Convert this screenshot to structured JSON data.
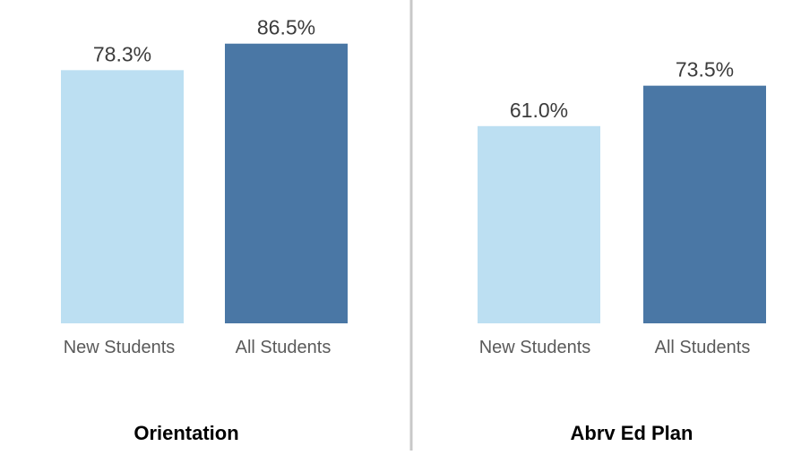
{
  "colors": {
    "new_students": "#bcdff2",
    "all_students": "#4a77a5",
    "divider": "#c8c8c8",
    "tick_label": "#5a5a5a",
    "value_label": "#3c3c3c",
    "panel_title": "#000000"
  },
  "chart_data": [
    {
      "type": "bar",
      "title": "Orientation",
      "categories": [
        "New Students",
        "All Students"
      ],
      "values": [
        78.3,
        86.5
      ],
      "value_labels": [
        "78.3%",
        "86.5%"
      ],
      "ylim": [
        0,
        100
      ],
      "grid": false,
      "legend": "none"
    },
    {
      "type": "bar",
      "title": "Abrv Ed Plan",
      "categories": [
        "New Students",
        "All Students"
      ],
      "values": [
        61.0,
        73.5
      ],
      "value_labels": [
        "61.0%",
        "73.5%"
      ],
      "ylim": [
        0,
        100
      ],
      "grid": false,
      "legend": "none"
    }
  ]
}
